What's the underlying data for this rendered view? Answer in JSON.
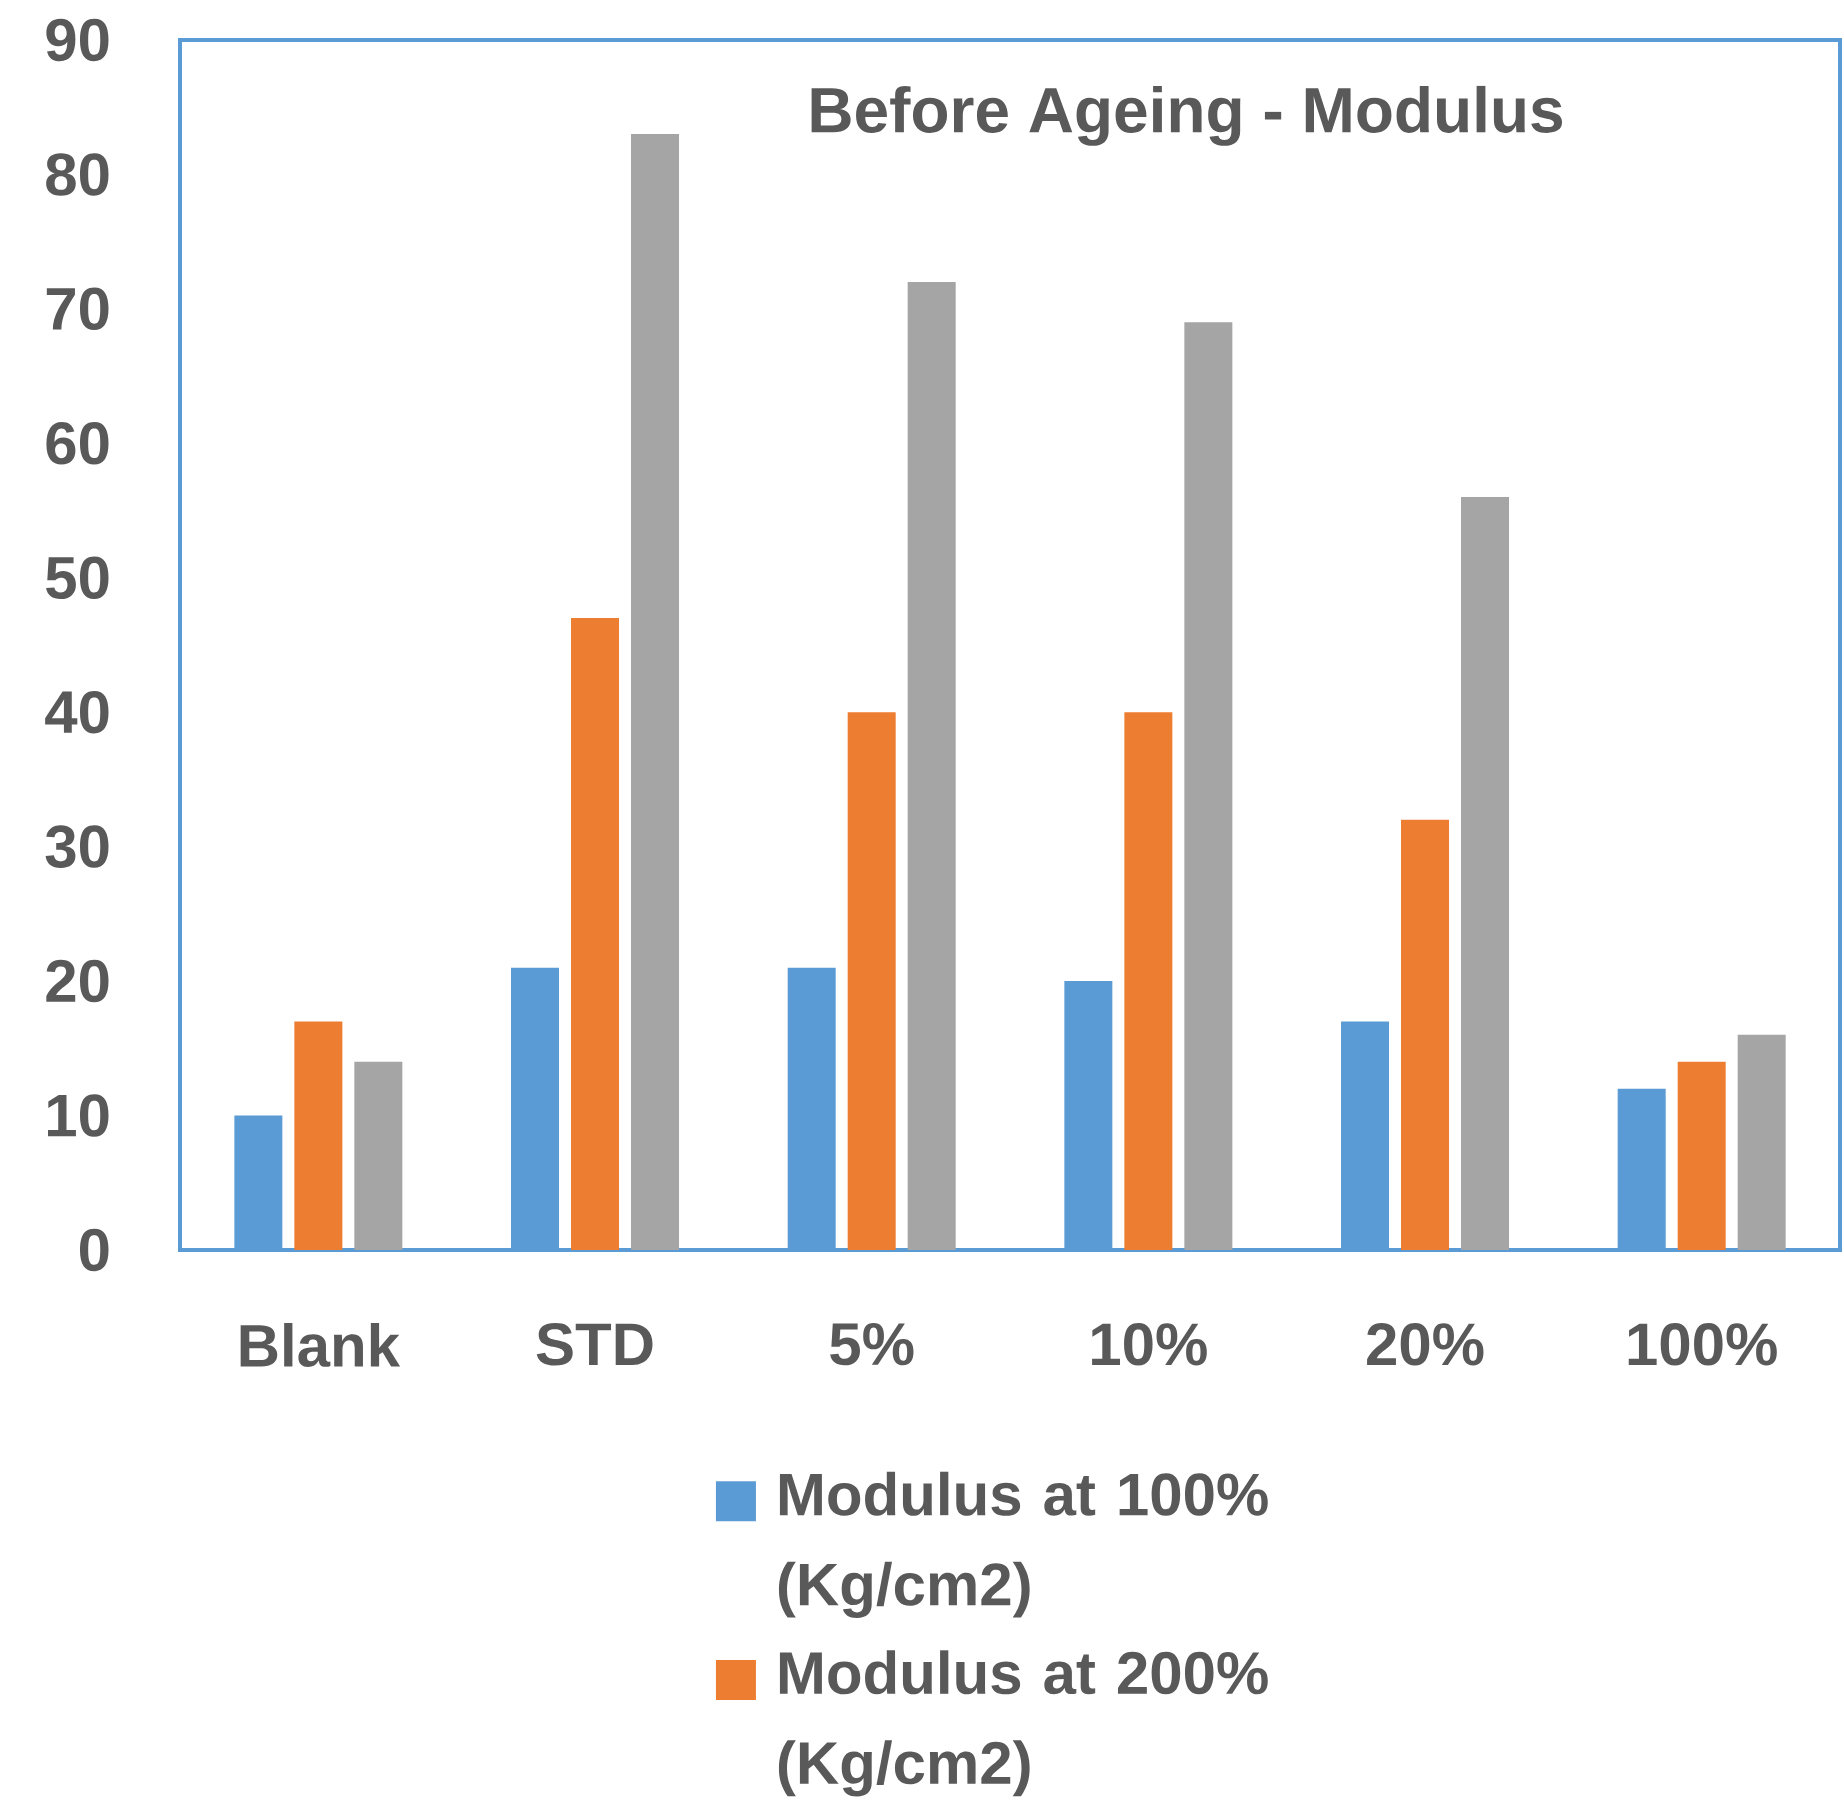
{
  "chart_data": {
    "type": "bar",
    "title": "Before Ageing - Modulus",
    "categories": [
      "Blank",
      "STD",
      "5%",
      "10%",
      "20%",
      "100%"
    ],
    "series": [
      {
        "name": "Modulus at 100% (Kg/cm2)",
        "color": "#5b9bd5",
        "values": [
          10,
          21,
          21,
          20,
          17,
          12
        ]
      },
      {
        "name": "Modulus at 200% (Kg/cm2)",
        "color": "#ed7d31",
        "values": [
          17,
          47,
          40,
          40,
          32,
          14
        ]
      },
      {
        "color": "#a5a5a5",
        "values": [
          14,
          83,
          72,
          69,
          56,
          16
        ]
      }
    ],
    "ylim": [
      0,
      90
    ],
    "yticks": [
      0,
      10,
      20,
      30,
      40,
      50,
      60,
      70,
      80,
      90
    ],
    "legend": "bottom"
  }
}
